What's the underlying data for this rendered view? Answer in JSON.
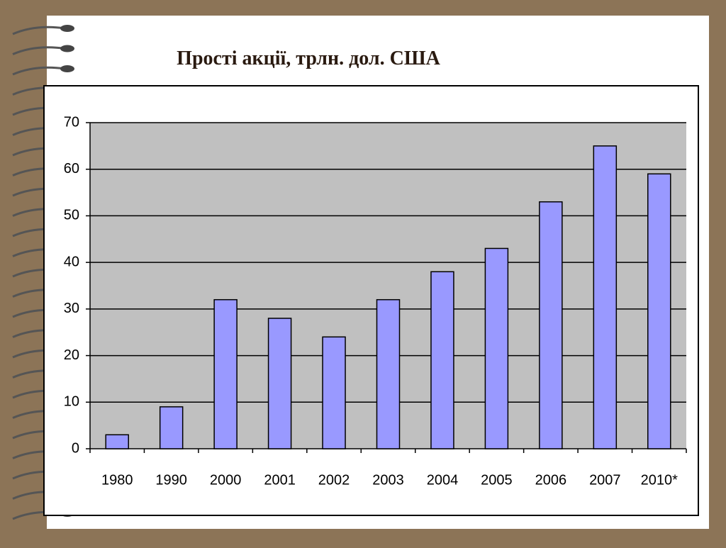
{
  "chart_data": {
    "type": "bar",
    "title": "Прості акції, трлн. дол. США",
    "categories": [
      "1980",
      "1990",
      "2000",
      "2001",
      "2002",
      "2003",
      "2004",
      "2005",
      "2006",
      "2007",
      "2010*"
    ],
    "values": [
      3,
      9,
      32,
      28,
      24,
      32,
      38,
      43,
      53,
      65,
      59
    ],
    "color": "#9999ff",
    "ylim": [
      0,
      70
    ],
    "yticks": [
      0,
      10,
      20,
      30,
      40,
      50,
      60,
      70
    ],
    "grid": true
  }
}
